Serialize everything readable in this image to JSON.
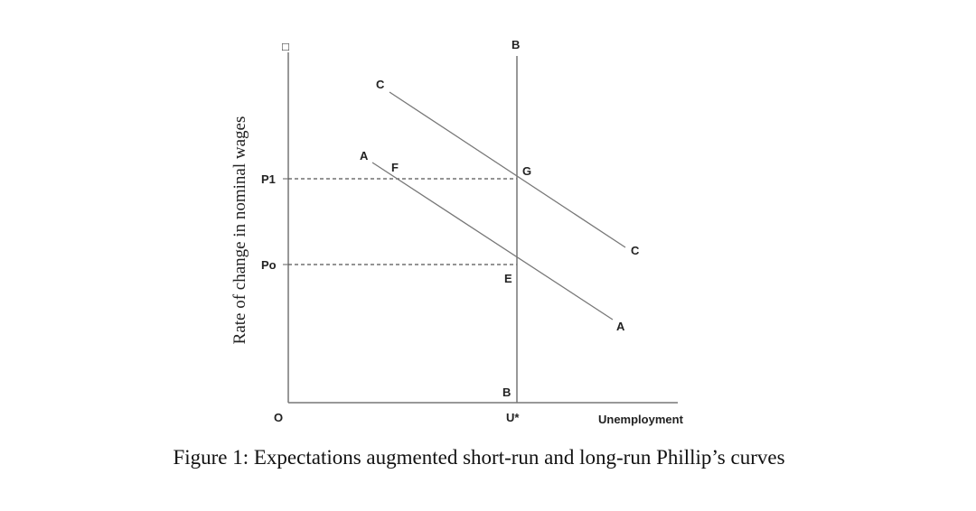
{
  "diagram": {
    "y_axis_label": "Rate of change in nominal wages",
    "x_axis_label": "Unemployment",
    "origin_label": "O",
    "y_top_marker": "□",
    "ticks": {
      "p1": "P1",
      "p0": "Po",
      "u_star": "U*"
    },
    "points": {
      "F": "F",
      "G": "G",
      "E": "E"
    },
    "curves": {
      "lrpc_top": "B",
      "lrpc_bottom": "B",
      "srpc_a_start": "A",
      "srpc_a_end": "A",
      "srpc_c_start": "C",
      "srpc_c_end": "C"
    },
    "colors": {
      "line": "#777777",
      "text": "#222222"
    }
  },
  "caption": "Figure 1: Expectations augmented short-run and long-run Phillip’s curves"
}
